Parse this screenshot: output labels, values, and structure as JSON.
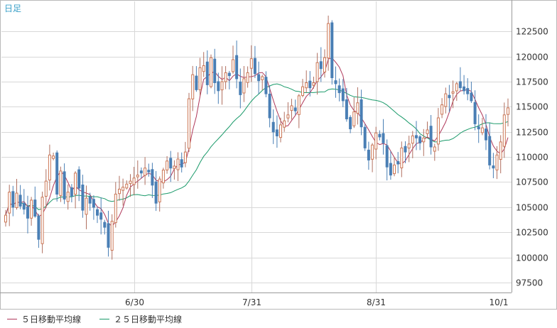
{
  "chart_data": {
    "type": "candlestick",
    "title": "日足",
    "xlabel": "",
    "ylabel": "",
    "x_tick_labels": [
      "6/30",
      "7/31",
      "8/31",
      "10/1"
    ],
    "y_tick_labels": [
      "97500",
      "100000",
      "102500",
      "105000",
      "107500",
      "110000",
      "112500",
      "115000",
      "117500",
      "120000",
      "122500"
    ],
    "ylim": [
      96500,
      125500
    ],
    "grid": true,
    "legend_position": "bottom-left",
    "series": [
      {
        "name": "５日移動平均線",
        "color": "#b0385a"
      },
      {
        "name": "２５日移動平均線",
        "color": "#1a9a6a"
      }
    ],
    "colors": {
      "up": "#cc7755",
      "down": "#4a7fb5"
    },
    "period": "daily",
    "close": [
      104200,
      106500,
      105000,
      106400,
      105100,
      104800,
      103900,
      105700,
      104100,
      101800,
      106000,
      107600,
      110200,
      110100,
      106300,
      108600,
      105800,
      106500,
      106100,
      108400,
      106900,
      104700,
      105900,
      105400,
      105000,
      104200,
      103800,
      103000,
      101000,
      103600,
      106300,
      106800,
      107000,
      107300,
      107600,
      107900,
      108200,
      108400,
      108900,
      108500,
      107200,
      105400,
      107800,
      108700,
      109600,
      108900,
      109100,
      109800,
      109000,
      110500,
      115800,
      118200,
      116700,
      118900,
      119100,
      117200,
      119900,
      117400,
      116600,
      117500,
      118400,
      118100,
      119700,
      117800,
      116200,
      117800,
      118400,
      119800,
      118300,
      117600,
      118000,
      116300,
      113900,
      112500,
      112100,
      113200,
      113600,
      114200,
      115100,
      114600,
      116100,
      117000,
      117400,
      116900,
      117400,
      119400,
      118800,
      119900,
      123300,
      117900,
      117300,
      116400,
      115600,
      113800,
      112800,
      114500,
      115400,
      113000,
      110900,
      109700,
      111200,
      112400,
      112000,
      111400,
      109000,
      108200,
      109200,
      109300,
      110900,
      110500,
      111300,
      112100,
      111900,
      111400,
      111900,
      112700,
      111000,
      111000,
      113900,
      115200,
      116300,
      115900,
      116500,
      117300,
      116900,
      116600,
      116300,
      115600,
      113300,
      112800,
      112900,
      111700,
      109200,
      108900,
      110200,
      111500,
      114200,
      114900
    ]
  }
}
